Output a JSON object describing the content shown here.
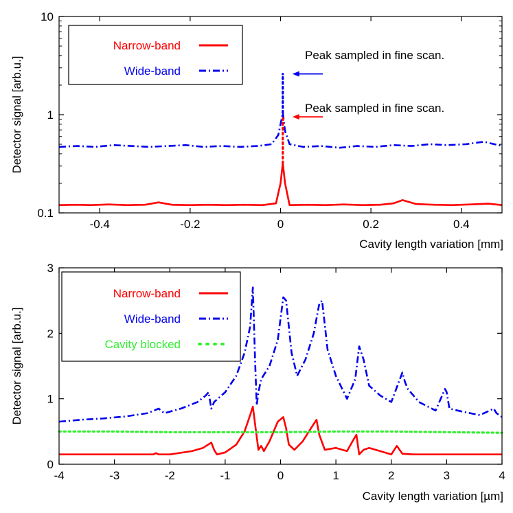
{
  "colors": {
    "narrow": "#ff0000",
    "wide": "#0000ee",
    "blocked": "#33ee33",
    "axis": "#000000"
  },
  "chart_data": [
    {
      "type": "line",
      "yscale": "log",
      "xlabel": "Cavity length variation  [mm]",
      "ylabel": "Detector signal [arb.u.]",
      "xlim": [
        -0.49,
        0.49
      ],
      "ylim": [
        0.1,
        10
      ],
      "xticks": [
        -0.4,
        -0.2,
        0,
        0.2,
        0.4
      ],
      "xtick_labels": [
        "-0.4",
        "-0.2",
        "0",
        "0.2",
        "0.4"
      ],
      "yticks": [
        0.1,
        1,
        10
      ],
      "ytick_labels": [
        "0.1",
        "1",
        "10"
      ],
      "legend": {
        "position": "top-left",
        "entries": [
          {
            "label": "Narrow-band",
            "series": "Narrow-band"
          },
          {
            "label": "Wide-band",
            "series": "Wide-band"
          }
        ]
      },
      "annotations": [
        {
          "text": "Peak sampled in fine scan.",
          "target": [
            0.005,
            2.6
          ],
          "color": "wide"
        },
        {
          "text": "Peak sampled in fine scan.",
          "target": [
            0.005,
            0.95
          ],
          "color": "narrow"
        }
      ],
      "series": [
        {
          "name": "Narrow-band",
          "style": "solid",
          "color": "narrow",
          "x": [
            -0.49,
            -0.45,
            -0.42,
            -0.38,
            -0.34,
            -0.3,
            -0.27,
            -0.24,
            -0.2,
            -0.16,
            -0.12,
            -0.08,
            -0.04,
            -0.01,
            0.0,
            0.005,
            0.01,
            0.02,
            0.06,
            0.1,
            0.14,
            0.18,
            0.22,
            0.25,
            0.27,
            0.3,
            0.34,
            0.38,
            0.42,
            0.46,
            0.49
          ],
          "y": [
            0.12,
            0.121,
            0.12,
            0.122,
            0.12,
            0.121,
            0.128,
            0.121,
            0.12,
            0.121,
            0.12,
            0.121,
            0.12,
            0.125,
            0.2,
            0.32,
            0.2,
            0.12,
            0.121,
            0.12,
            0.122,
            0.12,
            0.121,
            0.125,
            0.135,
            0.123,
            0.121,
            0.12,
            0.122,
            0.124,
            0.12
          ]
        },
        {
          "name": "Wide-band",
          "style": "dashdot",
          "color": "wide",
          "x": [
            -0.49,
            -0.45,
            -0.41,
            -0.37,
            -0.33,
            -0.29,
            -0.25,
            -0.21,
            -0.17,
            -0.13,
            -0.09,
            -0.05,
            -0.02,
            -0.005,
            0.0,
            0.005,
            0.01,
            0.02,
            0.05,
            0.09,
            0.13,
            0.17,
            0.21,
            0.25,
            0.29,
            0.33,
            0.37,
            0.41,
            0.45,
            0.49
          ],
          "y": [
            0.47,
            0.48,
            0.47,
            0.49,
            0.48,
            0.47,
            0.48,
            0.49,
            0.47,
            0.48,
            0.47,
            0.48,
            0.5,
            0.62,
            0.8,
            1.05,
            0.68,
            0.5,
            0.47,
            0.48,
            0.46,
            0.48,
            0.47,
            0.49,
            0.48,
            0.5,
            0.49,
            0.5,
            0.53,
            0.48
          ]
        },
        {
          "name": "Wide-band fine-scan peak",
          "style": "dotted",
          "color": "wide",
          "x": [
            0.005,
            0.005
          ],
          "y": [
            1.05,
            2.6
          ]
        },
        {
          "name": "Narrow-band fine-scan peak",
          "style": "dotted",
          "color": "narrow",
          "x": [
            0.005,
            0.005
          ],
          "y": [
            0.32,
            0.95
          ]
        }
      ]
    },
    {
      "type": "line",
      "yscale": "linear",
      "xlabel": "Cavity length variation  [µm]",
      "ylabel": "Detector signal [arb.u.]",
      "xlim": [
        -4,
        4
      ],
      "ylim": [
        0,
        3
      ],
      "xticks": [
        -4,
        -3,
        -2,
        -1,
        0,
        1,
        2,
        3,
        4
      ],
      "xtick_labels": [
        "-4",
        "-3",
        "-2",
        "-1",
        "0",
        "1",
        "2",
        "3",
        "4"
      ],
      "yticks": [
        0,
        1,
        2,
        3
      ],
      "ytick_labels": [
        "0",
        "1",
        "2",
        "3"
      ],
      "legend": {
        "position": "top-left",
        "entries": [
          {
            "label": "Narrow-band",
            "series": "Narrow-band"
          },
          {
            "label": "Wide-band",
            "series": "Wide-band"
          },
          {
            "label": "Cavity blocked",
            "series": "Cavity blocked"
          }
        ]
      },
      "annotations": [],
      "series": [
        {
          "name": "Narrow-band",
          "style": "solid",
          "color": "narrow",
          "x": [
            -4,
            -3,
            -2.3,
            -2.25,
            -2.2,
            -2,
            -1.6,
            -1.4,
            -1.25,
            -1.2,
            -1.15,
            -1.0,
            -0.8,
            -0.65,
            -0.55,
            -0.5,
            -0.45,
            -0.4,
            -0.35,
            -0.3,
            -0.2,
            -0.05,
            0.05,
            0.1,
            0.15,
            0.25,
            0.4,
            0.55,
            0.65,
            0.7,
            0.8,
            1.0,
            1.2,
            1.3,
            1.37,
            1.42,
            1.5,
            1.6,
            1.8,
            2.0,
            2.1,
            2.2,
            2.4,
            3.0,
            3.5,
            4
          ],
          "y": [
            0.15,
            0.15,
            0.15,
            0.17,
            0.15,
            0.15,
            0.2,
            0.25,
            0.33,
            0.22,
            0.15,
            0.18,
            0.3,
            0.5,
            0.75,
            0.88,
            0.55,
            0.22,
            0.28,
            0.2,
            0.35,
            0.65,
            0.72,
            0.55,
            0.3,
            0.22,
            0.35,
            0.55,
            0.68,
            0.45,
            0.22,
            0.25,
            0.2,
            0.35,
            0.45,
            0.15,
            0.22,
            0.25,
            0.2,
            0.15,
            0.28,
            0.16,
            0.15,
            0.15,
            0.15,
            0.15
          ]
        },
        {
          "name": "Wide-band",
          "style": "dashdot",
          "color": "wide",
          "x": [
            -4,
            -3.6,
            -3.2,
            -2.8,
            -2.4,
            -2.2,
            -2.1,
            -1.8,
            -1.5,
            -1.35,
            -1.3,
            -1.25,
            -1.2,
            -1.0,
            -0.8,
            -0.65,
            -0.55,
            -0.5,
            -0.46,
            -0.43,
            -0.4,
            -0.35,
            -0.2,
            -0.05,
            0.05,
            0.1,
            0.15,
            0.2,
            0.3,
            0.45,
            0.6,
            0.7,
            0.75,
            0.85,
            1.0,
            1.2,
            1.35,
            1.42,
            1.5,
            1.6,
            1.8,
            2.0,
            2.2,
            2.25,
            2.3,
            2.5,
            2.8,
            2.97,
            3.0,
            3.05,
            3.3,
            3.6,
            3.85,
            3.9,
            4
          ],
          "y": [
            0.65,
            0.68,
            0.7,
            0.73,
            0.78,
            0.85,
            0.78,
            0.85,
            0.95,
            1.05,
            1.1,
            0.85,
            0.95,
            1.1,
            1.35,
            1.7,
            2.1,
            2.7,
            1.6,
            0.9,
            1.1,
            1.3,
            1.5,
            1.9,
            2.55,
            2.5,
            2.1,
            1.7,
            1.35,
            1.6,
            2.0,
            2.45,
            2.5,
            1.75,
            1.35,
            1.0,
            1.3,
            1.8,
            1.6,
            1.2,
            1.05,
            0.95,
            1.4,
            1.25,
            1.15,
            0.95,
            0.82,
            1.15,
            1.1,
            0.85,
            0.8,
            0.75,
            0.85,
            0.78,
            0.72
          ]
        },
        {
          "name": "Cavity blocked",
          "style": "dotted",
          "color": "blocked",
          "x": [
            -4,
            -3,
            -2,
            -1,
            0,
            1,
            2,
            3,
            4
          ],
          "y": [
            0.5,
            0.5,
            0.49,
            0.49,
            0.49,
            0.5,
            0.5,
            0.49,
            0.48
          ]
        }
      ]
    }
  ]
}
